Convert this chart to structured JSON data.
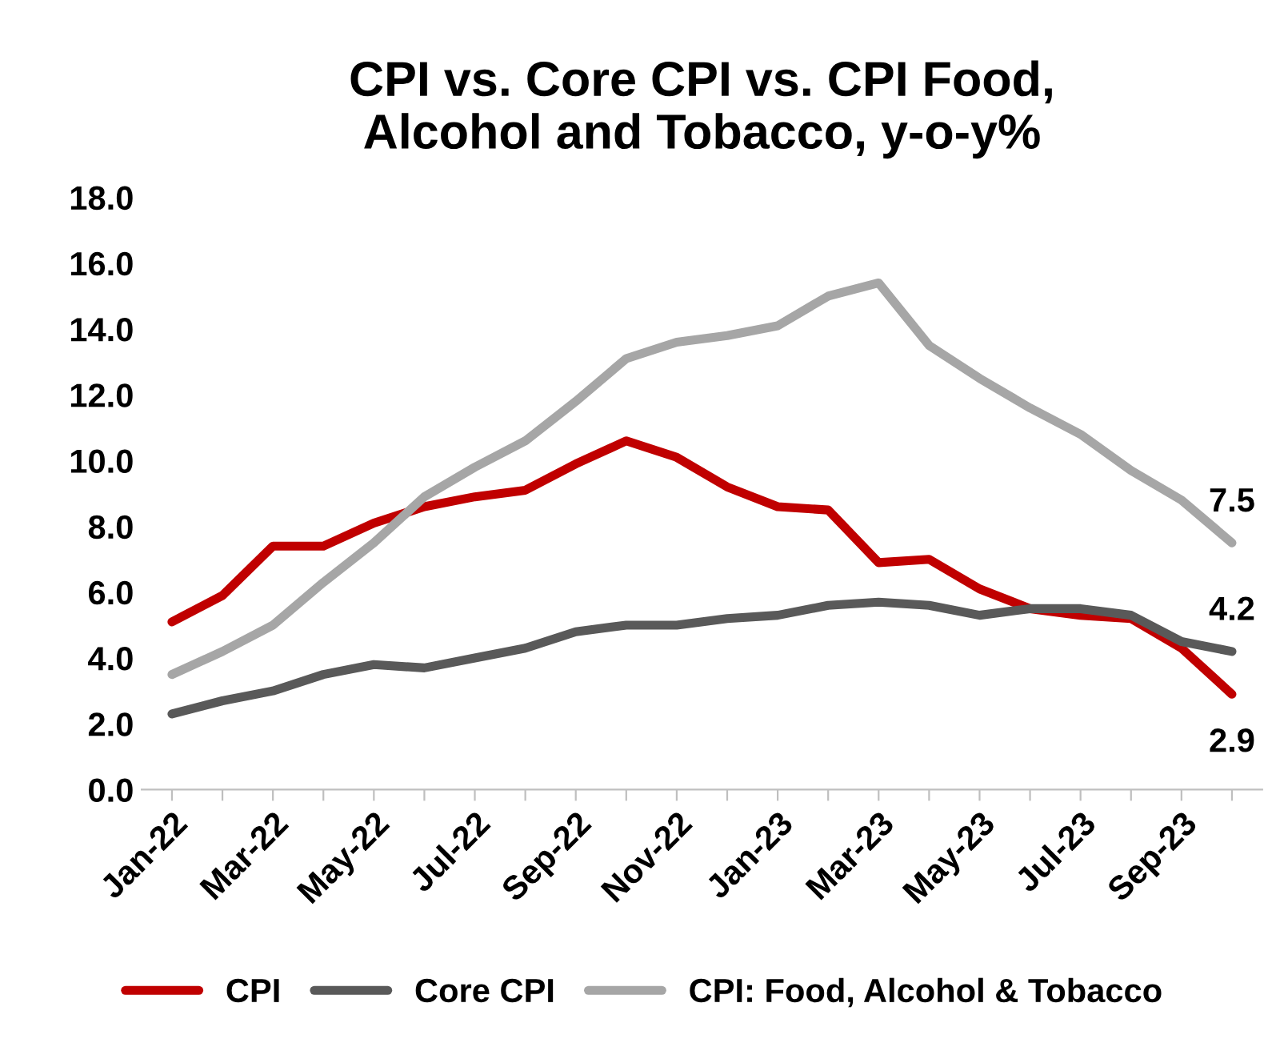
{
  "chart_data": {
    "type": "line",
    "title": "CPI vs. Core CPI vs. CPI Food,\nAlcohol and Tobacco, y-o-y%",
    "categories": [
      "Jan-22",
      null,
      "Mar-22",
      null,
      "May-22",
      null,
      "Jul-22",
      null,
      "Sep-22",
      null,
      "Nov-22",
      null,
      "Jan-23",
      null,
      "Mar-23",
      null,
      "May-23",
      null,
      "Jul-23",
      null,
      "Sep-23",
      null
    ],
    "series": [
      {
        "name": "CPI",
        "color": "#c00000",
        "values": [
          5.1,
          5.9,
          7.4,
          7.4,
          8.1,
          8.6,
          8.9,
          9.1,
          9.9,
          10.6,
          10.1,
          9.2,
          8.6,
          8.5,
          6.9,
          7.0,
          6.1,
          5.5,
          5.3,
          5.2,
          4.3,
          2.9
        ],
        "value_labels": [
          null,
          null,
          null,
          null,
          null,
          null,
          null,
          null,
          null,
          null,
          null,
          null,
          null,
          null,
          null,
          null,
          null,
          null,
          null,
          null,
          null,
          "2.9"
        ]
      },
      {
        "name": "Core CPI",
        "color": "#595959",
        "values": [
          2.3,
          2.7,
          3.0,
          3.5,
          3.8,
          3.7,
          4.0,
          4.3,
          4.8,
          5.0,
          5.0,
          5.2,
          5.3,
          5.6,
          5.7,
          5.6,
          5.3,
          5.5,
          5.5,
          5.3,
          4.5,
          4.2
        ],
        "value_labels": [
          null,
          null,
          null,
          null,
          null,
          null,
          null,
          null,
          null,
          null,
          null,
          null,
          null,
          null,
          null,
          null,
          null,
          null,
          null,
          null,
          null,
          "4.2"
        ]
      },
      {
        "name": "CPI: Food, Alcohol & Tobacco",
        "color": "#a6a6a6",
        "values": [
          3.5,
          4.2,
          5.0,
          6.3,
          7.5,
          8.9,
          9.8,
          10.6,
          11.8,
          13.1,
          13.6,
          13.8,
          14.1,
          15.0,
          15.4,
          13.5,
          12.5,
          11.6,
          10.8,
          9.7,
          8.8,
          7.5
        ],
        "value_labels": [
          null,
          null,
          null,
          null,
          null,
          null,
          null,
          null,
          null,
          null,
          null,
          null,
          null,
          null,
          null,
          null,
          null,
          null,
          null,
          null,
          null,
          "7.5"
        ]
      }
    ],
    "ylim": [
      0,
      18
    ],
    "yticks": [
      {
        "value": 0,
        "label": "0.0"
      },
      {
        "value": 2,
        "label": "2.0"
      },
      {
        "value": 4,
        "label": "4.0"
      },
      {
        "value": 6,
        "label": "6.0"
      },
      {
        "value": 8,
        "label": "8.0"
      },
      {
        "value": 10,
        "label": "10.0"
      },
      {
        "value": 12,
        "label": "12.0"
      },
      {
        "value": 14,
        "label": "14.0"
      },
      {
        "value": 16,
        "label": "16.0"
      },
      {
        "value": 18,
        "label": "18.0"
      }
    ],
    "grid": false,
    "legend": "bottom",
    "marker": "none",
    "line_style": "solid"
  }
}
